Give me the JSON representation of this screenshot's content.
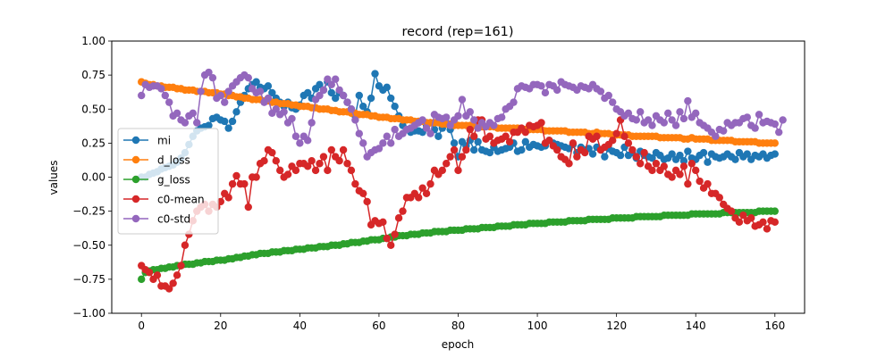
{
  "chart_data": {
    "type": "line",
    "title": "record (rep=161)",
    "xlabel": "epoch",
    "ylabel": "values",
    "xlim": [
      -7.5,
      167.5
    ],
    "ylim": [
      -1.0,
      1.0
    ],
    "xticks": [
      0,
      20,
      40,
      60,
      80,
      100,
      120,
      140,
      160
    ],
    "xtick_labels": [
      "0",
      "20",
      "40",
      "60",
      "80",
      "100",
      "120",
      "140",
      "160"
    ],
    "yticks": [
      1.0,
      0.75,
      0.5,
      0.25,
      0.0,
      -0.25,
      -0.5,
      -0.75,
      -1.0
    ],
    "ytick_labels": [
      "1.00",
      "0.75",
      "0.50",
      "0.25",
      "0.00",
      "−0.25",
      "−0.50",
      "−0.75",
      "−1.00"
    ],
    "grid": false,
    "legend_position": "center-left",
    "markers": "circle",
    "x": "epochs 0–160, step 1",
    "series": [
      {
        "name": "mi",
        "color": "#1f77b4",
        "values": [
          0.0,
          0.0,
          0.02,
          0.03,
          0.04,
          0.06,
          0.07,
          0.08,
          0.09,
          0.11,
          0.14,
          0.18,
          0.24,
          0.3,
          0.34,
          0.36,
          0.37,
          0.38,
          0.43,
          0.44,
          0.42,
          0.41,
          0.36,
          0.41,
          0.48,
          0.55,
          0.6,
          0.65,
          0.68,
          0.7,
          0.66,
          0.65,
          0.67,
          0.62,
          0.58,
          0.55,
          0.52,
          0.55,
          0.51,
          0.5,
          0.53,
          0.6,
          0.62,
          0.58,
          0.65,
          0.68,
          0.64,
          0.7,
          0.62,
          0.58,
          0.62,
          0.6,
          0.55,
          0.5,
          0.45,
          0.6,
          0.52,
          0.48,
          0.58,
          0.76,
          0.67,
          0.64,
          0.66,
          0.58,
          0.52,
          0.45,
          0.38,
          0.35,
          0.33,
          0.34,
          0.34,
          0.33,
          0.38,
          0.4,
          0.35,
          0.3,
          0.36,
          0.4,
          0.35,
          0.25,
          0.15,
          0.26,
          0.23,
          0.27,
          0.2,
          0.26,
          0.2,
          0.19,
          0.18,
          0.22,
          0.19,
          0.2,
          0.21,
          0.22,
          0.25,
          0.19,
          0.2,
          0.26,
          0.22,
          0.24,
          0.23,
          0.22,
          0.23,
          0.27,
          0.25,
          0.24,
          0.23,
          0.22,
          0.21,
          0.24,
          0.18,
          0.22,
          0.2,
          0.21,
          0.17,
          0.22,
          0.2,
          0.15,
          0.21,
          0.19,
          0.18,
          0.16,
          0.22,
          0.16,
          0.18,
          0.14,
          0.19,
          0.16,
          0.15,
          0.14,
          0.18,
          0.16,
          0.13,
          0.14,
          0.17,
          0.13,
          0.16,
          0.12,
          0.19,
          0.14,
          0.13,
          0.16,
          0.18,
          0.11,
          0.17,
          0.15,
          0.14,
          0.15,
          0.17,
          0.15,
          0.13,
          0.18,
          0.15,
          0.17,
          0.13,
          0.16,
          0.15,
          0.17,
          0.14,
          0.16,
          0.17
        ]
      },
      {
        "name": "d_loss",
        "color": "#ff7f0e",
        "values": [
          0.7,
          0.69,
          0.68,
          0.68,
          0.67,
          0.67,
          0.66,
          0.66,
          0.66,
          0.65,
          0.65,
          0.64,
          0.64,
          0.64,
          0.63,
          0.63,
          0.63,
          0.62,
          0.62,
          0.62,
          0.61,
          0.61,
          0.6,
          0.6,
          0.59,
          0.59,
          0.58,
          0.58,
          0.57,
          0.57,
          0.57,
          0.56,
          0.56,
          0.55,
          0.55,
          0.54,
          0.54,
          0.54,
          0.53,
          0.53,
          0.52,
          0.52,
          0.52,
          0.51,
          0.51,
          0.5,
          0.5,
          0.5,
          0.49,
          0.49,
          0.48,
          0.48,
          0.48,
          0.47,
          0.47,
          0.46,
          0.46,
          0.46,
          0.45,
          0.45,
          0.44,
          0.44,
          0.44,
          0.43,
          0.43,
          0.43,
          0.42,
          0.42,
          0.42,
          0.41,
          0.41,
          0.41,
          0.4,
          0.4,
          0.4,
          0.4,
          0.39,
          0.39,
          0.39,
          0.38,
          0.38,
          0.38,
          0.38,
          0.38,
          0.38,
          0.37,
          0.37,
          0.37,
          0.37,
          0.37,
          0.36,
          0.36,
          0.36,
          0.36,
          0.36,
          0.36,
          0.35,
          0.35,
          0.35,
          0.35,
          0.35,
          0.35,
          0.34,
          0.34,
          0.34,
          0.34,
          0.34,
          0.34,
          0.33,
          0.33,
          0.33,
          0.33,
          0.33,
          0.32,
          0.32,
          0.33,
          0.32,
          0.32,
          0.32,
          0.31,
          0.31,
          0.31,
          0.31,
          0.31,
          0.3,
          0.3,
          0.3,
          0.3,
          0.3,
          0.3,
          0.3,
          0.29,
          0.29,
          0.29,
          0.29,
          0.29,
          0.29,
          0.28,
          0.28,
          0.29,
          0.28,
          0.28,
          0.28,
          0.28,
          0.27,
          0.27,
          0.27,
          0.27,
          0.27,
          0.27,
          0.26,
          0.26,
          0.26,
          0.26,
          0.26,
          0.26,
          0.25,
          0.25,
          0.25,
          0.25,
          0.25
        ]
      },
      {
        "name": "g_loss",
        "color": "#2ca02c",
        "values": [
          -0.75,
          -0.7,
          -0.69,
          -0.68,
          -0.68,
          -0.67,
          -0.67,
          -0.66,
          -0.66,
          -0.65,
          -0.65,
          -0.64,
          -0.64,
          -0.64,
          -0.63,
          -0.63,
          -0.62,
          -0.62,
          -0.62,
          -0.61,
          -0.61,
          -0.61,
          -0.6,
          -0.6,
          -0.59,
          -0.59,
          -0.58,
          -0.58,
          -0.57,
          -0.57,
          -0.56,
          -0.56,
          -0.56,
          -0.55,
          -0.55,
          -0.55,
          -0.54,
          -0.54,
          -0.54,
          -0.53,
          -0.53,
          -0.53,
          -0.52,
          -0.52,
          -0.52,
          -0.51,
          -0.51,
          -0.51,
          -0.5,
          -0.5,
          -0.5,
          -0.49,
          -0.49,
          -0.48,
          -0.48,
          -0.48,
          -0.47,
          -0.47,
          -0.46,
          -0.46,
          -0.46,
          -0.45,
          -0.45,
          -0.44,
          -0.44,
          -0.43,
          -0.43,
          -0.43,
          -0.42,
          -0.42,
          -0.42,
          -0.41,
          -0.41,
          -0.41,
          -0.4,
          -0.4,
          -0.4,
          -0.4,
          -0.39,
          -0.39,
          -0.39,
          -0.39,
          -0.38,
          -0.38,
          -0.38,
          -0.38,
          -0.37,
          -0.37,
          -0.37,
          -0.37,
          -0.36,
          -0.36,
          -0.36,
          -0.36,
          -0.35,
          -0.35,
          -0.35,
          -0.35,
          -0.34,
          -0.34,
          -0.34,
          -0.34,
          -0.34,
          -0.33,
          -0.33,
          -0.33,
          -0.33,
          -0.33,
          -0.32,
          -0.32,
          -0.32,
          -0.32,
          -0.32,
          -0.31,
          -0.31,
          -0.31,
          -0.31,
          -0.31,
          -0.31,
          -0.3,
          -0.3,
          -0.3,
          -0.3,
          -0.3,
          -0.3,
          -0.29,
          -0.29,
          -0.29,
          -0.29,
          -0.29,
          -0.29,
          -0.29,
          -0.28,
          -0.28,
          -0.28,
          -0.28,
          -0.28,
          -0.28,
          -0.28,
          -0.27,
          -0.27,
          -0.27,
          -0.27,
          -0.27,
          -0.27,
          -0.27,
          -0.27,
          -0.26,
          -0.26,
          -0.26,
          -0.26,
          -0.26,
          -0.26,
          -0.26,
          -0.26,
          -0.26,
          -0.25,
          -0.25,
          -0.25,
          -0.25,
          -0.25
        ]
      },
      {
        "name": "c0-mean",
        "color": "#d62728",
        "values": [
          -0.65,
          -0.68,
          -0.7,
          -0.75,
          -0.72,
          -0.8,
          -0.8,
          -0.82,
          -0.78,
          -0.72,
          -0.65,
          -0.5,
          -0.42,
          -0.32,
          -0.25,
          -0.22,
          -0.2,
          -0.25,
          -0.2,
          -0.22,
          -0.18,
          -0.12,
          -0.15,
          -0.05,
          0.01,
          -0.05,
          -0.05,
          -0.22,
          0.0,
          0.0,
          0.1,
          0.12,
          0.2,
          0.18,
          0.12,
          0.05,
          0.0,
          0.02,
          0.08,
          0.05,
          0.1,
          0.1,
          0.08,
          0.12,
          0.05,
          0.1,
          0.15,
          0.05,
          0.2,
          0.15,
          0.12,
          0.2,
          0.1,
          0.05,
          -0.05,
          -0.1,
          -0.12,
          -0.18,
          -0.35,
          -0.32,
          -0.34,
          -0.33,
          -0.45,
          -0.5,
          -0.42,
          -0.3,
          -0.25,
          -0.15,
          -0.15,
          -0.12,
          -0.15,
          -0.08,
          -0.12,
          -0.05,
          0.05,
          0.02,
          0.05,
          0.1,
          0.15,
          0.2,
          0.05,
          0.15,
          0.2,
          0.35,
          0.3,
          0.42,
          0.42,
          0.28,
          0.3,
          0.25,
          0.27,
          0.28,
          0.3,
          0.26,
          0.33,
          0.33,
          0.36,
          0.33,
          0.38,
          0.37,
          0.38,
          0.4,
          0.25,
          0.27,
          0.23,
          0.2,
          0.15,
          0.13,
          0.1,
          0.25,
          0.15,
          0.2,
          0.18,
          0.3,
          0.28,
          0.3,
          0.2,
          0.22,
          0.24,
          0.27,
          0.32,
          0.42,
          0.3,
          0.25,
          0.2,
          0.15,
          0.1,
          0.18,
          0.08,
          0.05,
          0.1,
          0.05,
          0.08,
          0.02,
          0.0,
          0.05,
          0.02,
          0.08,
          -0.05,
          0.1,
          0.05,
          -0.03,
          -0.08,
          -0.05,
          -0.12,
          -0.12,
          -0.15,
          -0.2,
          -0.23,
          -0.25,
          -0.3,
          -0.33,
          -0.28,
          -0.32,
          -0.3,
          -0.36,
          -0.35,
          -0.33,
          -0.38,
          -0.32,
          -0.33
        ]
      },
      {
        "name": "c0-std",
        "color": "#9467bd",
        "values": [
          0.6,
          0.68,
          0.66,
          0.67,
          0.67,
          0.65,
          0.6,
          0.55,
          0.45,
          0.47,
          0.42,
          0.4,
          0.45,
          0.47,
          0.4,
          0.63,
          0.75,
          0.77,
          0.73,
          0.58,
          0.6,
          0.55,
          0.63,
          0.67,
          0.7,
          0.73,
          0.75,
          0.73,
          0.65,
          0.62,
          0.63,
          0.55,
          0.58,
          0.47,
          0.5,
          0.46,
          0.48,
          0.4,
          0.43,
          0.3,
          0.25,
          0.3,
          0.27,
          0.4,
          0.57,
          0.6,
          0.64,
          0.72,
          0.68,
          0.72,
          0.64,
          0.6,
          0.55,
          0.5,
          0.42,
          0.32,
          0.25,
          0.15,
          0.18,
          0.2,
          0.21,
          0.25,
          0.3,
          0.25,
          0.35,
          0.3,
          0.32,
          0.35,
          0.36,
          0.38,
          0.4,
          0.42,
          0.36,
          0.32,
          0.46,
          0.44,
          0.43,
          0.44,
          0.38,
          0.42,
          0.45,
          0.57,
          0.45,
          0.48,
          0.42,
          0.36,
          0.4,
          0.37,
          0.4,
          0.38,
          0.43,
          0.44,
          0.5,
          0.52,
          0.55,
          0.65,
          0.67,
          0.66,
          0.65,
          0.68,
          0.68,
          0.67,
          0.62,
          0.68,
          0.67,
          0.64,
          0.7,
          0.68,
          0.67,
          0.66,
          0.64,
          0.67,
          0.66,
          0.65,
          0.68,
          0.65,
          0.63,
          0.58,
          0.6,
          0.55,
          0.5,
          0.48,
          0.45,
          0.47,
          0.43,
          0.42,
          0.48,
          0.4,
          0.42,
          0.38,
          0.45,
          0.42,
          0.4,
          0.47,
          0.42,
          0.38,
          0.48,
          0.43,
          0.56,
          0.44,
          0.47,
          0.4,
          0.38,
          0.36,
          0.33,
          0.3,
          0.35,
          0.34,
          0.4,
          0.38,
          0.4,
          0.4,
          0.43,
          0.44,
          0.38,
          0.36,
          0.46,
          0.4,
          0.41,
          0.4,
          0.39,
          0.33,
          0.42
        ]
      }
    ]
  }
}
